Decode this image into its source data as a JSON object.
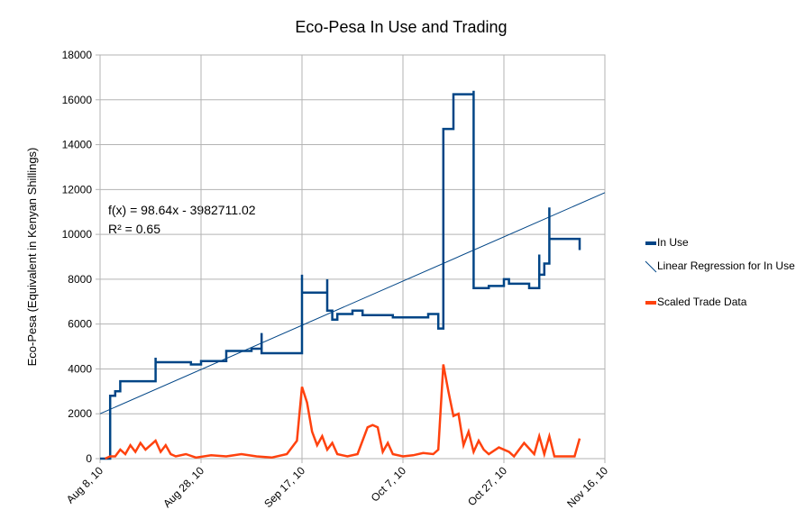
{
  "chart_data": {
    "type": "line",
    "title": "Eco-Pesa In Use and Trading",
    "ylabel": "Eco-Pesa (Equivalent in Kenyan Shillings)",
    "annotations": [
      "f(x) = 98.64x - 3982711.02",
      "R² = 0.65"
    ],
    "xlim": [
      "2010-08-08",
      "2010-11-16"
    ],
    "xticks": [
      {
        "value": "2010-08-08",
        "label": "Aug 8, 10"
      },
      {
        "value": "2010-08-28",
        "label": "Aug 28, 10"
      },
      {
        "value": "2010-09-17",
        "label": "Sep 17, 10"
      },
      {
        "value": "2010-10-07",
        "label": "Oct 7, 10"
      },
      {
        "value": "2010-10-27",
        "label": "Oct 27, 10"
      },
      {
        "value": "2010-11-16",
        "label": "Nov 16, 10"
      }
    ],
    "ylim": [
      0,
      18000
    ],
    "yticks": [
      0,
      2000,
      4000,
      6000,
      8000,
      10000,
      12000,
      14000,
      16000,
      18000
    ],
    "grid": true,
    "legend": "right",
    "series": [
      {
        "name": "In Use",
        "color": "#004586",
        "width": 2.5,
        "x": [
          "2010-08-08",
          "2010-08-10",
          "2010-08-10",
          "2010-08-11",
          "2010-08-11",
          "2010-08-12",
          "2010-08-12",
          "2010-08-19",
          "2010-08-19",
          "2010-08-19",
          "2010-08-26",
          "2010-08-26",
          "2010-08-28",
          "2010-08-28",
          "2010-09-02",
          "2010-09-02",
          "2010-09-07",
          "2010-09-07",
          "2010-09-09",
          "2010-09-09",
          "2010-09-09",
          "2010-09-17",
          "2010-09-17",
          "2010-09-17",
          "2010-09-22",
          "2010-09-22",
          "2010-09-22",
          "2010-09-23",
          "2010-09-23",
          "2010-09-24",
          "2010-09-24",
          "2010-09-27",
          "2010-09-27",
          "2010-09-29",
          "2010-09-29",
          "2010-10-05",
          "2010-10-05",
          "2010-10-12",
          "2010-10-12",
          "2010-10-14",
          "2010-10-14",
          "2010-10-15",
          "2010-10-15",
          "2010-10-17",
          "2010-10-17",
          "2010-10-21",
          "2010-10-21",
          "2010-10-21",
          "2010-10-24",
          "2010-10-24",
          "2010-10-27",
          "2010-10-27",
          "2010-10-28",
          "2010-10-28",
          "2010-11-01",
          "2010-11-01",
          "2010-11-03",
          "2010-11-03",
          "2010-11-03",
          "2010-11-04",
          "2010-11-04",
          "2010-11-05",
          "2010-11-05",
          "2010-11-05",
          "2010-11-11",
          "2010-11-11"
        ],
        "values": [
          0,
          0,
          2800,
          2800,
          3000,
          3000,
          3450,
          3450,
          4500,
          4300,
          4300,
          4200,
          4200,
          4350,
          4350,
          4800,
          4800,
          4900,
          4900,
          5600,
          4700,
          4700,
          8200,
          7400,
          7400,
          8000,
          6600,
          6600,
          6200,
          6200,
          6450,
          6450,
          6600,
          6600,
          6400,
          6400,
          6300,
          6300,
          6450,
          6450,
          5800,
          5800,
          14700,
          14700,
          16250,
          16250,
          16400,
          7600,
          7600,
          7700,
          7700,
          8000,
          8000,
          7800,
          7800,
          7600,
          7600,
          9100,
          8200,
          8200,
          8700,
          8700,
          11200,
          9800,
          9800,
          9300
        ]
      },
      {
        "name": "Linear Regression for In Use",
        "color": "#004586",
        "width": 1,
        "x": [
          "2010-08-08",
          "2010-11-16"
        ],
        "values": [
          2000,
          11860
        ]
      },
      {
        "name": "Scaled Trade Data",
        "color": "#ff420e",
        "width": 2.5,
        "x": [
          "2010-08-09",
          "2010-08-10",
          "2010-08-11",
          "2010-08-12",
          "2010-08-13",
          "2010-08-14",
          "2010-08-15",
          "2010-08-16",
          "2010-08-17",
          "2010-08-18",
          "2010-08-19",
          "2010-08-20",
          "2010-08-21",
          "2010-08-22",
          "2010-08-23",
          "2010-08-25",
          "2010-08-27",
          "2010-08-30",
          "2010-09-02",
          "2010-09-05",
          "2010-09-08",
          "2010-09-11",
          "2010-09-14",
          "2010-09-16",
          "2010-09-17",
          "2010-09-18",
          "2010-09-19",
          "2010-09-20",
          "2010-09-21",
          "2010-09-22",
          "2010-09-23",
          "2010-09-24",
          "2010-09-26",
          "2010-09-28",
          "2010-09-30",
          "2010-10-01",
          "2010-10-02",
          "2010-10-03",
          "2010-10-04",
          "2010-10-05",
          "2010-10-07",
          "2010-10-09",
          "2010-10-11",
          "2010-10-13",
          "2010-10-14",
          "2010-10-15",
          "2010-10-16",
          "2010-10-17",
          "2010-10-18",
          "2010-10-19",
          "2010-10-20",
          "2010-10-21",
          "2010-10-22",
          "2010-10-23",
          "2010-10-24",
          "2010-10-26",
          "2010-10-28",
          "2010-10-29",
          "2010-10-31",
          "2010-11-02",
          "2010-11-03",
          "2010-11-04",
          "2010-11-05",
          "2010-11-06",
          "2010-11-10",
          "2010-11-11"
        ],
        "values": [
          0,
          100,
          100,
          400,
          200,
          600,
          300,
          700,
          400,
          600,
          800,
          300,
          600,
          200,
          100,
          200,
          50,
          150,
          100,
          200,
          100,
          50,
          200,
          800,
          3200,
          2500,
          1200,
          600,
          1000,
          400,
          700,
          200,
          100,
          200,
          1400,
          1500,
          1400,
          300,
          700,
          200,
          100,
          150,
          250,
          200,
          400,
          4200,
          3000,
          1900,
          2000,
          600,
          1200,
          300,
          800,
          400,
          200,
          500,
          300,
          100,
          700,
          200,
          1000,
          200,
          1000,
          100,
          100,
          900
        ]
      }
    ]
  }
}
